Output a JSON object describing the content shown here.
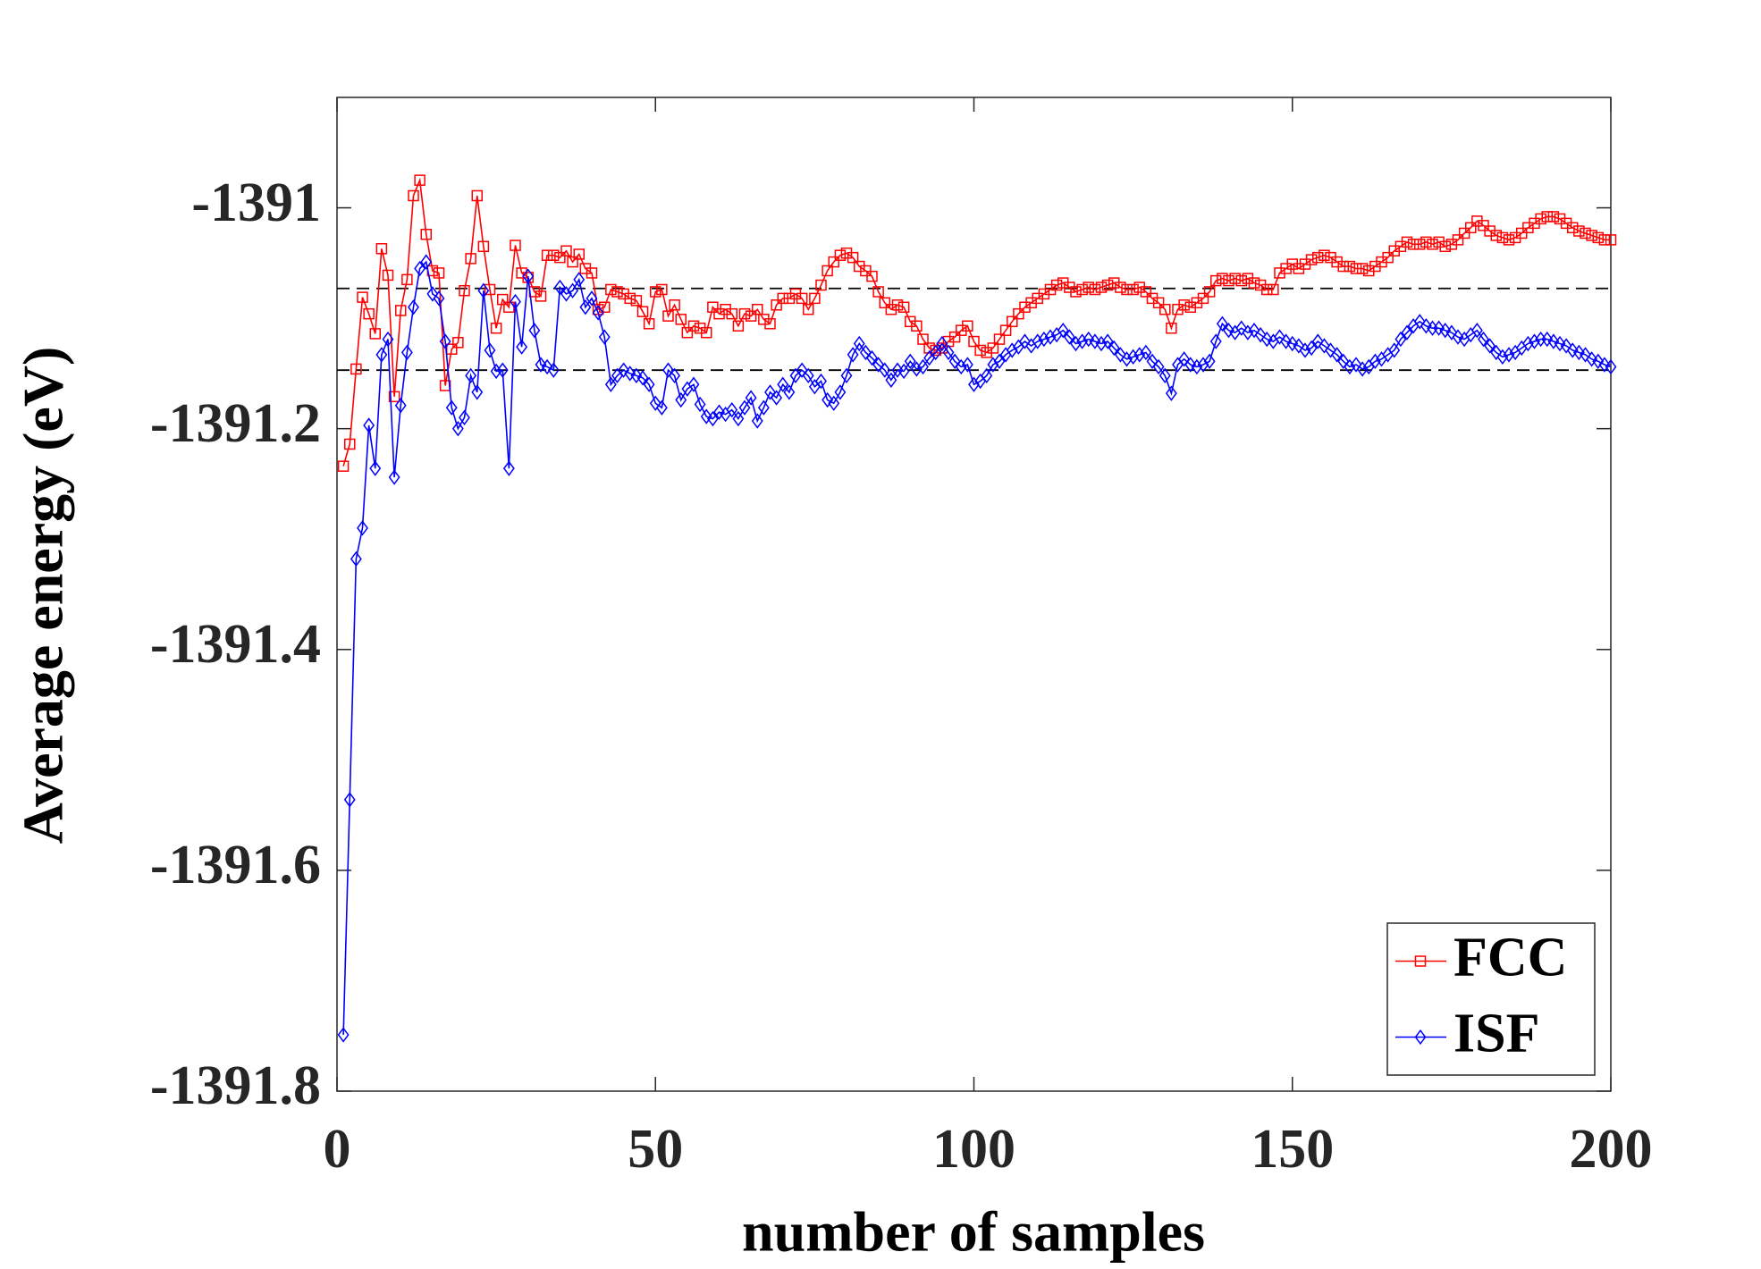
{
  "chart_data": {
    "type": "line",
    "xlabel": "number of samples",
    "ylabel": "Average energy (eV)",
    "xlim": [
      0,
      200
    ],
    "xticks": [
      0,
      50,
      100,
      150,
      200
    ],
    "ylim": [
      -1391.8,
      -1390.9
    ],
    "yticks": [
      -1391.8,
      -1391.6,
      -1391.4,
      -1391.2,
      -1391
    ],
    "legend": "southeast",
    "hlines": [
      -1391.073,
      -1391.147
    ],
    "x": [
      1,
      2,
      3,
      4,
      5,
      6,
      7,
      8,
      9,
      10,
      11,
      12,
      13,
      14,
      15,
      16,
      17,
      18,
      19,
      20,
      21,
      22,
      23,
      24,
      25,
      26,
      27,
      28,
      29,
      30,
      31,
      32,
      33,
      34,
      35,
      36,
      37,
      38,
      39,
      40,
      41,
      42,
      43,
      44,
      45,
      46,
      47,
      48,
      49,
      50,
      51,
      52,
      53,
      54,
      55,
      56,
      57,
      58,
      59,
      60,
      61,
      62,
      63,
      64,
      65,
      66,
      67,
      68,
      69,
      70,
      71,
      72,
      73,
      74,
      75,
      76,
      77,
      78,
      79,
      80,
      81,
      82,
      83,
      84,
      85,
      86,
      87,
      88,
      89,
      90,
      91,
      92,
      93,
      94,
      95,
      96,
      97,
      98,
      99,
      100,
      101,
      102,
      103,
      104,
      105,
      106,
      107,
      108,
      109,
      110,
      111,
      112,
      113,
      114,
      115,
      116,
      117,
      118,
      119,
      120,
      121,
      122,
      123,
      124,
      125,
      126,
      127,
      128,
      129,
      130,
      131,
      132,
      133,
      134,
      135,
      136,
      137,
      138,
      139,
      140,
      141,
      142,
      143,
      144,
      145,
      146,
      147,
      148,
      149,
      150,
      151,
      152,
      153,
      154,
      155,
      156,
      157,
      158,
      159,
      160,
      161,
      162,
      163,
      164,
      165,
      166,
      167,
      168,
      169,
      170,
      171,
      172,
      173,
      174,
      175,
      176,
      177,
      178,
      179,
      180,
      181,
      182,
      183,
      184,
      185,
      186,
      187,
      188,
      189,
      190,
      191,
      192,
      193,
      194,
      195,
      196,
      197,
      198,
      199,
      200
    ],
    "series": [
      {
        "name": "FCC",
        "color": "#ff0000",
        "marker": "square",
        "values": [
          -1391.234,
          -1391.214,
          -1391.146,
          -1391.081,
          -1391.096,
          -1391.114,
          -1391.037,
          -1391.061,
          -1391.171,
          -1391.093,
          -1391.065,
          -1390.989,
          -1390.975,
          -1391.024,
          -1391.057,
          -1391.059,
          -1391.161,
          -1391.128,
          -1391.122,
          -1391.075,
          -1391.046,
          -1390.989,
          -1391.035,
          -1391.074,
          -1391.109,
          -1391.083,
          -1391.09,
          -1391.034,
          -1391.059,
          -1391.063,
          -1391.076,
          -1391.08,
          -1391.043,
          -1391.043,
          -1391.045,
          -1391.039,
          -1391.049,
          -1391.042,
          -1391.055,
          -1391.059,
          -1391.092,
          -1391.09,
          -1391.074,
          -1391.076,
          -1391.078,
          -1391.082,
          -1391.084,
          -1391.094,
          -1391.105,
          -1391.076,
          -1391.074,
          -1391.098,
          -1391.088,
          -1391.101,
          -1391.113,
          -1391.107,
          -1391.109,
          -1391.113,
          -1391.09,
          -1391.096,
          -1391.092,
          -1391.096,
          -1391.107,
          -1391.096,
          -1391.098,
          -1391.092,
          -1391.101,
          -1391.105,
          -1391.088,
          -1391.082,
          -1391.082,
          -1391.078,
          -1391.082,
          -1391.092,
          -1391.082,
          -1391.07,
          -1391.057,
          -1391.049,
          -1391.043,
          -1391.041,
          -1391.045,
          -1391.053,
          -1391.057,
          -1391.062,
          -1391.076,
          -1391.086,
          -1391.092,
          -1391.088,
          -1391.09,
          -1391.103,
          -1391.107,
          -1391.119,
          -1391.127,
          -1391.129,
          -1391.127,
          -1391.121,
          -1391.117,
          -1391.111,
          -1391.107,
          -1391.121,
          -1391.129,
          -1391.131,
          -1391.127,
          -1391.119,
          -1391.111,
          -1391.103,
          -1391.096,
          -1391.09,
          -1391.086,
          -1391.082,
          -1391.078,
          -1391.074,
          -1391.07,
          -1391.068,
          -1391.072,
          -1391.076,
          -1391.074,
          -1391.072,
          -1391.074,
          -1391.072,
          -1391.07,
          -1391.068,
          -1391.072,
          -1391.074,
          -1391.074,
          -1391.072,
          -1391.076,
          -1391.082,
          -1391.086,
          -1391.092,
          -1391.109,
          -1391.092,
          -1391.088,
          -1391.09,
          -1391.086,
          -1391.082,
          -1391.076,
          -1391.066,
          -1391.064,
          -1391.066,
          -1391.064,
          -1391.066,
          -1391.064,
          -1391.068,
          -1391.07,
          -1391.074,
          -1391.074,
          -1391.059,
          -1391.055,
          -1391.051,
          -1391.055,
          -1391.051,
          -1391.047,
          -1391.045,
          -1391.043,
          -1391.045,
          -1391.049,
          -1391.053,
          -1391.053,
          -1391.055,
          -1391.055,
          -1391.057,
          -1391.053,
          -1391.049,
          -1391.045,
          -1391.039,
          -1391.035,
          -1391.031,
          -1391.033,
          -1391.033,
          -1391.031,
          -1391.033,
          -1391.031,
          -1391.035,
          -1391.033,
          -1391.029,
          -1391.023,
          -1391.018,
          -1391.012,
          -1391.016,
          -1391.021,
          -1391.025,
          -1391.027,
          -1391.029,
          -1391.027,
          -1391.023,
          -1391.018,
          -1391.014,
          -1391.01,
          -1391.008,
          -1391.008,
          -1391.01,
          -1391.014,
          -1391.018,
          -1391.021,
          -1391.023,
          -1391.025,
          -1391.027,
          -1391.029,
          -1391.029
        ]
      },
      {
        "name": "ISF",
        "color": "#0000ff",
        "marker": "diamond",
        "values": [
          -1391.749,
          -1391.536,
          -1391.318,
          -1391.29,
          -1391.197,
          -1391.236,
          -1391.133,
          -1391.119,
          -1391.244,
          -1391.179,
          -1391.131,
          -1391.09,
          -1391.055,
          -1391.049,
          -1391.078,
          -1391.082,
          -1391.121,
          -1391.181,
          -1391.2,
          -1391.19,
          -1391.152,
          -1391.167,
          -1391.075,
          -1391.129,
          -1391.148,
          -1391.147,
          -1391.236,
          -1391.085,
          -1391.126,
          -1391.062,
          -1391.111,
          -1391.142,
          -1391.144,
          -1391.147,
          -1391.072,
          -1391.078,
          -1391.075,
          -1391.065,
          -1391.09,
          -1391.082,
          -1391.095,
          -1391.117,
          -1391.16,
          -1391.152,
          -1391.147,
          -1391.15,
          -1391.152,
          -1391.154,
          -1391.16,
          -1391.177,
          -1391.181,
          -1391.147,
          -1391.152,
          -1391.174,
          -1391.164,
          -1391.16,
          -1391.178,
          -1391.189,
          -1391.191,
          -1391.185,
          -1391.187,
          -1391.183,
          -1391.191,
          -1391.181,
          -1391.172,
          -1391.193,
          -1391.181,
          -1391.167,
          -1391.172,
          -1391.16,
          -1391.167,
          -1391.152,
          -1391.147,
          -1391.152,
          -1391.162,
          -1391.157,
          -1391.174,
          -1391.177,
          -1391.167,
          -1391.152,
          -1391.133,
          -1391.123,
          -1391.131,
          -1391.136,
          -1391.142,
          -1391.147,
          -1391.156,
          -1391.147,
          -1391.148,
          -1391.139,
          -1391.146,
          -1391.144,
          -1391.136,
          -1391.131,
          -1391.123,
          -1391.131,
          -1391.139,
          -1391.144,
          -1391.142,
          -1391.16,
          -1391.157,
          -1391.152,
          -1391.142,
          -1391.139,
          -1391.133,
          -1391.129,
          -1391.126,
          -1391.121,
          -1391.125,
          -1391.121,
          -1391.119,
          -1391.117,
          -1391.115,
          -1391.111,
          -1391.117,
          -1391.123,
          -1391.121,
          -1391.119,
          -1391.121,
          -1391.123,
          -1391.121,
          -1391.127,
          -1391.133,
          -1391.137,
          -1391.135,
          -1391.133,
          -1391.131,
          -1391.139,
          -1391.144,
          -1391.152,
          -1391.168,
          -1391.142,
          -1391.137,
          -1391.142,
          -1391.144,
          -1391.142,
          -1391.139,
          -1391.121,
          -1391.105,
          -1391.111,
          -1391.113,
          -1391.109,
          -1391.113,
          -1391.111,
          -1391.115,
          -1391.119,
          -1391.121,
          -1391.117,
          -1391.121,
          -1391.123,
          -1391.125,
          -1391.129,
          -1391.127,
          -1391.121,
          -1391.125,
          -1391.129,
          -1391.133,
          -1391.139,
          -1391.144,
          -1391.142,
          -1391.146,
          -1391.144,
          -1391.139,
          -1391.137,
          -1391.133,
          -1391.129,
          -1391.119,
          -1391.113,
          -1391.107,
          -1391.103,
          -1391.107,
          -1391.109,
          -1391.109,
          -1391.111,
          -1391.113,
          -1391.117,
          -1391.119,
          -1391.115,
          -1391.111,
          -1391.119,
          -1391.125,
          -1391.131,
          -1391.135,
          -1391.133,
          -1391.131,
          -1391.127,
          -1391.123,
          -1391.121,
          -1391.119,
          -1391.119,
          -1391.121,
          -1391.123,
          -1391.125,
          -1391.129,
          -1391.131,
          -1391.133,
          -1391.137,
          -1391.139,
          -1391.142,
          -1391.144
        ]
      }
    ]
  }
}
